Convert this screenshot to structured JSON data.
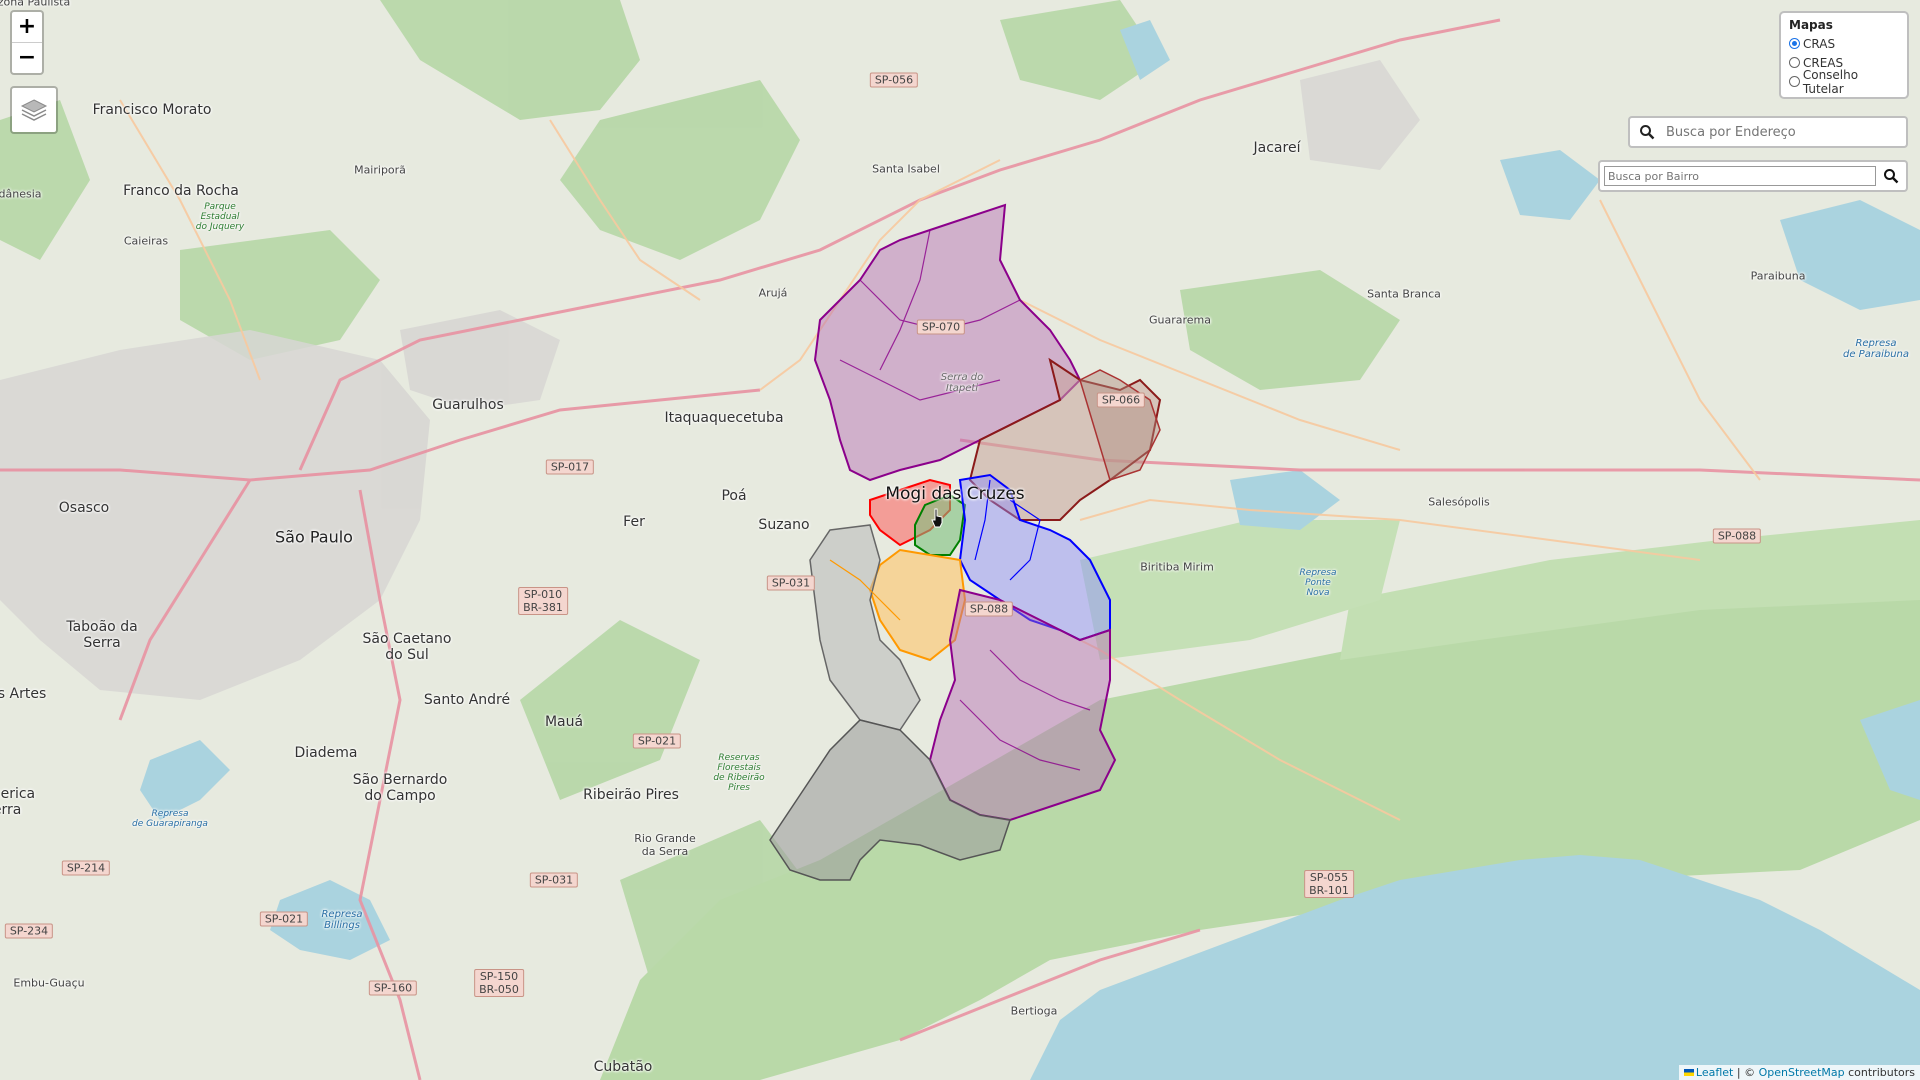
{
  "zoom": {
    "in_label": "+",
    "out_label": "−"
  },
  "mapas_panel": {
    "title": "Mapas",
    "options": [
      {
        "label": "CRAS",
        "selected": true
      },
      {
        "label": "CREAS",
        "selected": false
      },
      {
        "label": "Conselho Tutelar",
        "selected": false
      }
    ]
  },
  "address_search": {
    "placeholder": "Busca por Endereço"
  },
  "bairro_search": {
    "placeholder": "Busca por Bairro"
  },
  "attribution": {
    "leaflet": "Leaflet",
    "separator": " | © ",
    "osm": "OpenStreetMap",
    "suffix": " contributors"
  },
  "places": {
    "mogi": "Mogi das Cruzes",
    "sao_paulo": "São Paulo",
    "osasco": "Osasco",
    "guarulhos": "Guarulhos",
    "itaquaquecetuba": "Itaquaquecetuba",
    "suzano": "Suzano",
    "poa": "Poá",
    "fer": "Fer",
    "aruja": "Arujá",
    "santa_isabel": "Santa Isabel",
    "jacarei": "Jacareí",
    "guararema": "Guararema",
    "biritiba": "Biritiba Mirim",
    "salesopolis": "Salesópolis",
    "santa_branca": "Santa Branca",
    "paraibuna": "Paraibuna",
    "francisco_morato": "Francisco Morato",
    "franco_da_rocha": "Franco da Rocha",
    "caieiras": "Caieiras",
    "mairipora": "Mairiporã",
    "taboao": "Taboão da\nSerra",
    "sao_caetano": "São Caetano\ndo Sul",
    "santo_andre": "Santo André",
    "maua": "Mauá",
    "diadema": "Diadema",
    "sao_bernardo": "São Bernardo\ndo Campo",
    "ribeirao_pires": "Ribeirão Pires",
    "rio_grande": "Rio Grande\nda Serra",
    "embu": "Embu-Guaçu",
    "bertioga": "Bertioga",
    "cubatao": "Cubatão",
    "artes": "s Artes",
    "cerica": "cerica\nerra",
    "danesia": "dânesia",
    "serra_itapeti": "Serra do\nItapeti",
    "parque_juquery": "Parque\nEstadual\ndo Juquery",
    "represa_guarapiranga": "Represa\nde Guarapiranga",
    "represa_billings": "Represa\nBillings",
    "reservas_ribeirao": "Reservas\nFlorestais\nde Ribeirão\nPires",
    "represa_ponte_nova": "Represa\nPonte\nNova",
    "represa_paraibuna": "Represa\nde Paraibuna",
    "zona_paulista": "zona Paulista"
  },
  "shields": [
    "SP-056",
    "SP-066",
    "SP-017",
    "SP-031",
    "SP-010\nBR-381",
    "SP-088",
    "SP-021",
    "SP-031",
    "SP-214",
    "SP-021",
    "SP-234",
    "SP-160",
    "SP-150\nBR-050",
    "SP-055\nBR-101",
    "SP-070",
    "SP-088"
  ],
  "layers_control": {
    "icon": "layers-icon"
  },
  "colors": {
    "water": "#aad3df",
    "forest": "#add19e",
    "urban": "#e0dfdf",
    "road_major": "#e892a2",
    "road_secondary": "#f7c99f",
    "cras_purple": "#8b008b",
    "cras_blue": "#0000ff",
    "cras_red": "#ff0000",
    "cras_orange": "#ff9900",
    "cras_green": "#008000",
    "cras_gray": "#666666",
    "cras_brown": "#8b1a1a"
  }
}
